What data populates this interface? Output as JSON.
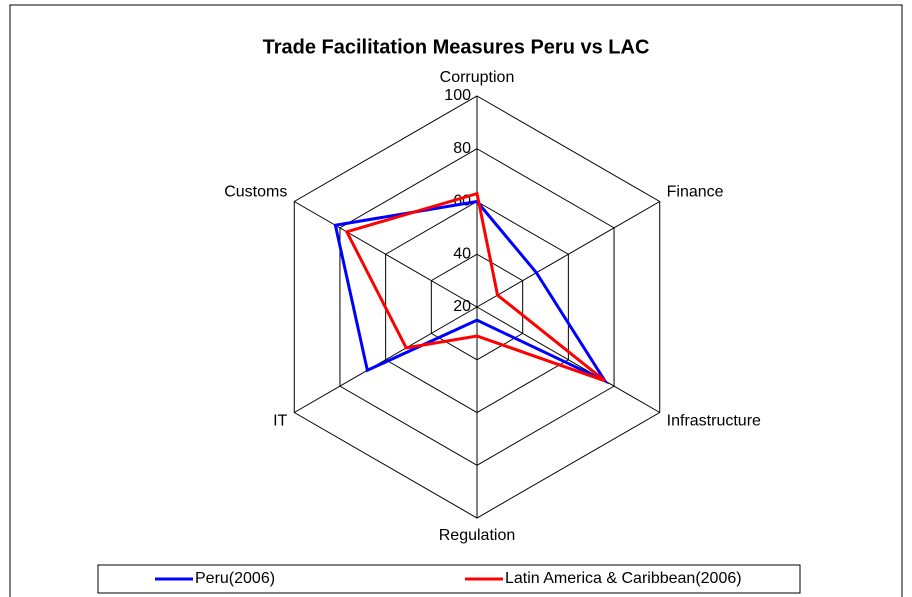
{
  "chart_data": {
    "type": "radar",
    "title": "Trade Facilitation Measures Peru vs LAC",
    "categories": [
      "Corruption",
      "Finance",
      "Infrastructure",
      "Regulation",
      "IT",
      "Customs"
    ],
    "series": [
      {
        "name": "Peru(2006)",
        "color": "#0000ff",
        "values": [
          60,
          46,
          76,
          25,
          68,
          82
        ]
      },
      {
        "name": "Latin America & Caribbean(2006)",
        "color": "#ff0000",
        "values": [
          63,
          29,
          76,
          31,
          51,
          77
        ]
      }
    ],
    "ylim": [
      20,
      100
    ],
    "yticks": [
      20,
      40,
      60,
      80,
      100
    ],
    "grid": true,
    "legend": "bottom"
  }
}
